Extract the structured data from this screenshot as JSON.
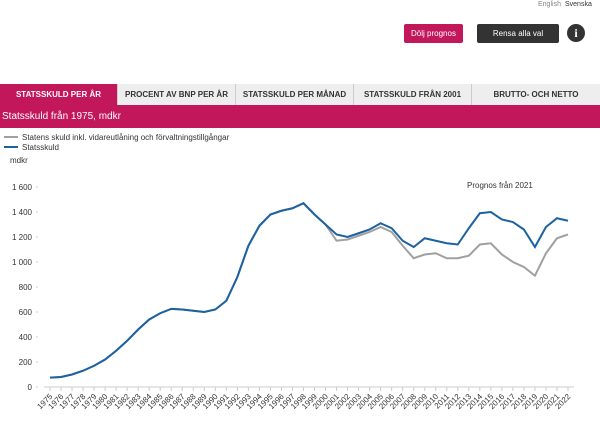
{
  "header": {
    "languages": [
      "English",
      "Svenska"
    ],
    "buttons": [
      "Dölj prognos",
      "Rensa alla val"
    ]
  },
  "tabs": [
    "STATSSKULD PER ÅR",
    "PROCENT AV BNP PER ÅR",
    "STATSSKULD PER MÅNAD",
    "STATSSKULD FRÅN 2001",
    "BRUTTO- OCH NETTO"
  ],
  "panel": {
    "title": "Statsskuld från 1975, mdkr"
  },
  "chart_data": {
    "type": "line",
    "ylabel": "mdkr",
    "annotation": "Prognos från 2021",
    "categories": [
      "1975",
      "1976",
      "1977",
      "1978",
      "1979",
      "1980",
      "1981",
      "1982",
      "1983",
      "1984",
      "1985",
      "1986",
      "1987",
      "1988",
      "1989",
      "1990",
      "1991",
      "1992",
      "1993",
      "1994",
      "1995",
      "1996",
      "1997",
      "1998",
      "1999",
      "2000",
      "2001",
      "2002",
      "2003",
      "2004",
      "2005",
      "2006",
      "2007",
      "2008",
      "2009",
      "2010",
      "2011",
      "2012",
      "2013",
      "2014",
      "2015",
      "2016",
      "2017",
      "2018",
      "2019",
      "2020",
      "2021",
      "2022"
    ],
    "series": [
      {
        "name": "Statens skuld inkl. vidareutlåning och förvaltningstillgångar",
        "color": "#a0a0a0",
        "values": [
          75,
          80,
          100,
          130,
          170,
          220,
          290,
          370,
          460,
          540,
          590,
          625,
          620,
          610,
          600,
          620,
          690,
          880,
          1130,
          1290,
          1380,
          1410,
          1430,
          1470,
          1380,
          1300,
          1170,
          1180,
          1210,
          1240,
          1280,
          1240,
          1130,
          1030,
          1060,
          1070,
          1030,
          1030,
          1050,
          1140,
          1150,
          1060,
          1000,
          960,
          890,
          1070,
          1190,
          1220
        ]
      },
      {
        "name": "Statsskuld",
        "color": "#1a62a0",
        "values": [
          75,
          80,
          100,
          130,
          170,
          220,
          290,
          370,
          460,
          540,
          590,
          625,
          620,
          610,
          600,
          620,
          690,
          880,
          1130,
          1290,
          1380,
          1410,
          1430,
          1470,
          1380,
          1300,
          1220,
          1200,
          1230,
          1260,
          1310,
          1270,
          1170,
          1120,
          1190,
          1170,
          1150,
          1140,
          1270,
          1390,
          1400,
          1340,
          1320,
          1260,
          1120,
          1280,
          1350,
          1330
        ]
      }
    ],
    "ylim": [
      0,
      1600
    ],
    "yticks": [
      0,
      200,
      400,
      600,
      800,
      {
        "value": 1000,
        "label": "1 000"
      },
      {
        "value": 1200,
        "label": "1 200"
      },
      {
        "value": 1400,
        "label": "1 400"
      },
      {
        "value": 1600,
        "label": "1 600"
      }
    ],
    "grid": false
  }
}
